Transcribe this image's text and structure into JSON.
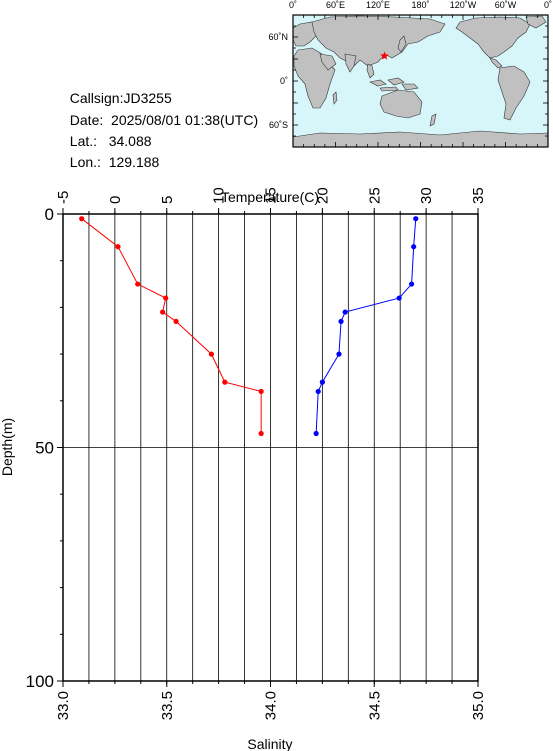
{
  "station": {
    "callsign_label": "Callsign:",
    "callsign": "JD3255",
    "date_label": "Date:",
    "date": "2025/08/01 01:38(UTC)",
    "lat_label": "Lat.:",
    "lat": "34.088",
    "lon_label": "Lon.:",
    "lon": "129.188"
  },
  "map": {
    "top_ticks": [
      "0˚",
      "60˚E",
      "120˚E",
      "180˚",
      "120˚W",
      "60˚W",
      "0˚"
    ],
    "left_ticks": [
      "60˚N",
      "0˚",
      "60˚S"
    ],
    "ocean_color": "#d6f6fa",
    "land_color": "#c0c0c0",
    "marker_color": "#ff0000"
  },
  "chart_data": {
    "type": "line",
    "top_axis_label": "Temperature(C)",
    "bottom_axis_label": "Salinity",
    "y_axis_label": "Depth(m)",
    "temperature_range": [
      -5,
      35
    ],
    "temperature_ticks": [
      "-5",
      "0",
      "5",
      "10",
      "15",
      "20",
      "25",
      "30",
      "35"
    ],
    "salinity_range": [
      33.0,
      35.0
    ],
    "salinity_ticks": [
      "33.0",
      "33.5",
      "34.0",
      "34.5",
      "35.0"
    ],
    "depth_range": [
      0,
      100
    ],
    "depth_ticks": [
      "0",
      "50",
      "100"
    ],
    "series": [
      {
        "name": "Temperature",
        "axis": "temperature",
        "color": "#ff0000",
        "depth": [
          1,
          7,
          15,
          18,
          21,
          23,
          30,
          36,
          38,
          47
        ],
        "values": [
          -3.2,
          0.3,
          2.2,
          4.9,
          4.6,
          5.9,
          9.3,
          10.6,
          14.1,
          14.1
        ]
      },
      {
        "name": "Salinity",
        "axis": "salinity",
        "color": "#0000ff",
        "depth": [
          1,
          7,
          15,
          18,
          21,
          23,
          30,
          36,
          38,
          47
        ],
        "values": [
          34.7,
          34.69,
          34.68,
          34.62,
          34.36,
          34.34,
          34.33,
          34.25,
          34.23,
          34.22
        ]
      }
    ]
  }
}
